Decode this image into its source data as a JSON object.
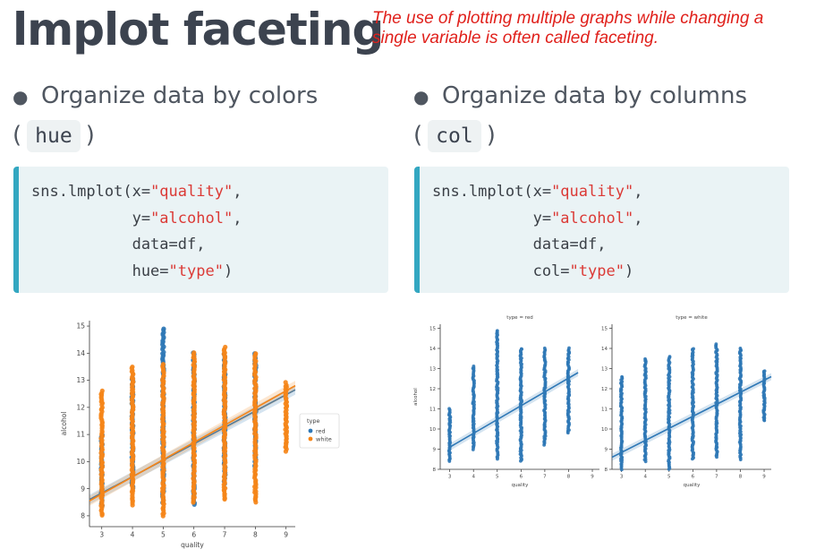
{
  "title": "lmplot faceting",
  "note": "The use of plotting multiple graphs while changing a single variable is often called faceting.",
  "left": {
    "bullet": "Organize data by colors",
    "paren_open": "(",
    "paren_code": "hue",
    "paren_close": ")",
    "code_lines": [
      {
        "pre": "sns.lmplot(x=",
        "str": "\"quality\"",
        "post": ","
      },
      {
        "pre": "           y=",
        "str": "\"alcohol\"",
        "post": ","
      },
      {
        "pre": "           data=df,",
        "str": "",
        "post": ""
      },
      {
        "pre": "           hue=",
        "str": "\"type\"",
        "post": ")"
      }
    ]
  },
  "right": {
    "bullet": "Organize data by columns",
    "paren_open": "(",
    "paren_code": "col",
    "paren_close": ")",
    "code_lines": [
      {
        "pre": "sns.lmplot(x=",
        "str": "\"quality\"",
        "post": ","
      },
      {
        "pre": "           y=",
        "str": "\"alcohol\"",
        "post": ","
      },
      {
        "pre": "           data=df,",
        "str": "",
        "post": ""
      },
      {
        "pre": "           col=",
        "str": "\"type\"",
        "post": ")"
      }
    ]
  },
  "colors": {
    "red": "#2f78b6",
    "white": "#f58518",
    "accent": "#33a7c1"
  },
  "chart_data": [
    {
      "type": "scatter",
      "xlabel": "quality",
      "ylabel": "alcohol",
      "xlim": [
        2.6,
        9.3
      ],
      "ylim": [
        7.6,
        15.2
      ],
      "xticks": [
        3,
        4,
        5,
        6,
        7,
        8,
        9
      ],
      "yticks": [
        8,
        9,
        10,
        11,
        12,
        13,
        14,
        15
      ],
      "legend": {
        "title": "type",
        "position": "right",
        "entries": [
          "red",
          "white"
        ]
      },
      "series": [
        {
          "name": "red",
          "color": "#2f78b6",
          "ranges": [
            [
              3,
              8.4,
              11.0
            ],
            [
              4,
              9.0,
              13.1
            ],
            [
              5,
              8.5,
              14.9
            ],
            [
              6,
              8.4,
              14.0
            ],
            [
              7,
              9.2,
              14.0
            ],
            [
              8,
              9.8,
              14.0
            ]
          ],
          "fit": [
            [
              2.6,
              8.6
            ],
            [
              9.3,
              12.65
            ]
          ]
        },
        {
          "name": "white",
          "color": "#f58518",
          "ranges": [
            [
              3,
              8.0,
              12.6
            ],
            [
              4,
              8.4,
              13.5
            ],
            [
              5,
              8.0,
              13.6
            ],
            [
              6,
              8.5,
              14.0
            ],
            [
              7,
              8.6,
              14.2
            ],
            [
              8,
              8.5,
              14.0
            ],
            [
              9,
              10.4,
              12.9
            ]
          ],
          "fit": [
            [
              2.6,
              8.55
            ],
            [
              9.3,
              12.8
            ]
          ]
        }
      ]
    },
    {
      "type": "scatter",
      "title": "type = red",
      "xlabel": "quality",
      "ylabel": "alcohol",
      "xlim": [
        2.6,
        9.3
      ],
      "ylim": [
        8.0,
        15.2
      ],
      "xticks": [
        3,
        4,
        5,
        6,
        7,
        8,
        9
      ],
      "yticks": [
        8,
        9,
        10,
        11,
        12,
        13,
        14,
        15
      ],
      "series": [
        {
          "name": "red",
          "color": "#2f78b6",
          "ranges": [
            [
              3,
              8.4,
              11.0
            ],
            [
              4,
              9.0,
              13.1
            ],
            [
              5,
              8.5,
              14.9
            ],
            [
              6,
              8.4,
              14.0
            ],
            [
              7,
              9.2,
              14.0
            ],
            [
              8,
              9.8,
              14.0
            ]
          ],
          "fit": [
            [
              3,
              9.1
            ],
            [
              8.4,
              12.8
            ]
          ]
        }
      ]
    },
    {
      "type": "scatter",
      "title": "type = white",
      "xlabel": "quality",
      "ylabel": "",
      "xlim": [
        2.6,
        9.3
      ],
      "ylim": [
        8.0,
        15.2
      ],
      "xticks": [
        3,
        4,
        5,
        6,
        7,
        8,
        9
      ],
      "yticks": [
        8,
        9,
        10,
        11,
        12,
        13,
        14,
        15
      ],
      "series": [
        {
          "name": "white",
          "color": "#2f78b6",
          "ranges": [
            [
              3,
              8.0,
              12.6
            ],
            [
              4,
              8.4,
              13.5
            ],
            [
              5,
              8.0,
              13.6
            ],
            [
              6,
              8.5,
              14.0
            ],
            [
              7,
              8.6,
              14.2
            ],
            [
              8,
              8.5,
              14.0
            ],
            [
              9,
              10.4,
              12.9
            ]
          ],
          "fit": [
            [
              2.6,
              8.6
            ],
            [
              9.3,
              12.6
            ]
          ]
        }
      ]
    }
  ]
}
